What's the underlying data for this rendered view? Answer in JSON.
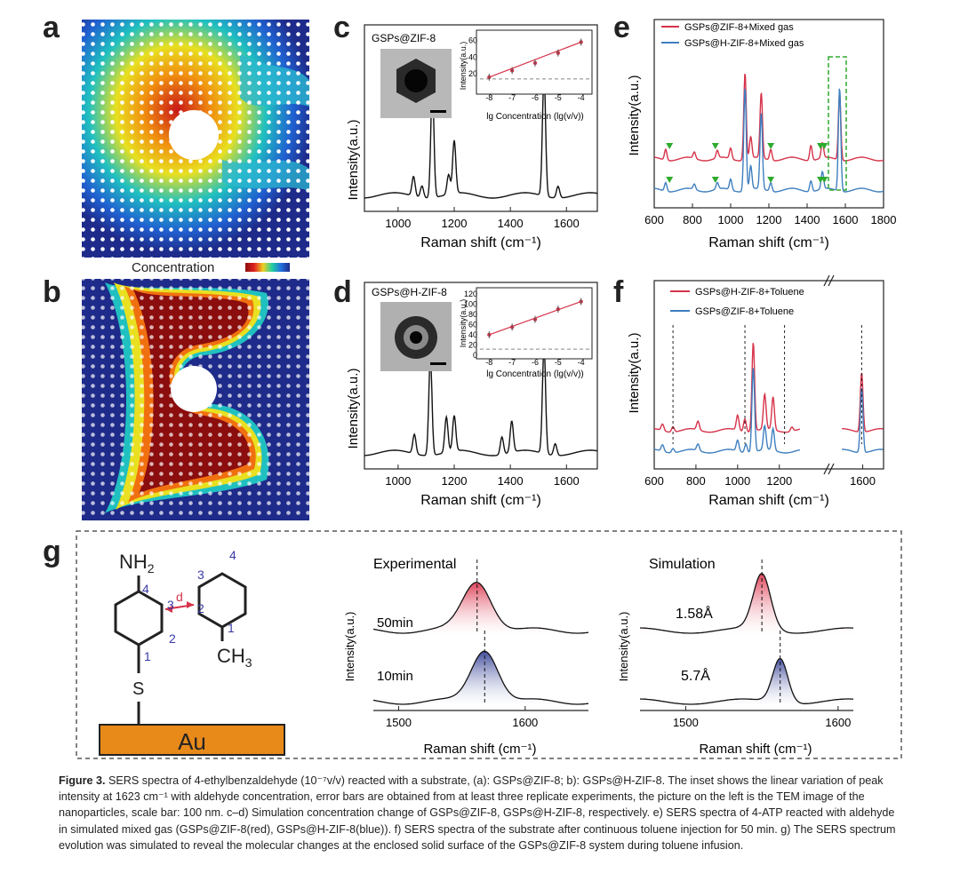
{
  "panels": {
    "a": {
      "label": "a"
    },
    "b": {
      "label": "b",
      "colorbar_label": "Concentration"
    },
    "c": {
      "label": "c",
      "sample": "GSPs@ZIF-8"
    },
    "d": {
      "label": "d",
      "sample": "GSPs@H-ZIF-8"
    },
    "e": {
      "label": "e"
    },
    "f": {
      "label": "f"
    },
    "g": {
      "label": "g",
      "experimental_title": "Experimental",
      "simulation_title": "Simulation",
      "time_50": "50min",
      "time_10": "10min",
      "dist_158": "1.58Å",
      "dist_57": "5.7Å",
      "substrate": "Au",
      "nh2": "NH",
      "nh2_sub": "2",
      "ch3": "CH",
      "ch3_sub": "3",
      "s": "S",
      "d": "d",
      "ring_a": [
        "4",
        "3",
        "2",
        "1"
      ],
      "ring_b": [
        "3",
        "4",
        "2",
        "1"
      ]
    }
  },
  "chart_data": [
    {
      "id": "c",
      "type": "line",
      "xlabel": "Raman shift (cm⁻¹)",
      "ylabel": "Intensity(a.u.)",
      "xlim": [
        880,
        1710
      ],
      "xticks": [
        1000,
        1200,
        1400,
        1600
      ],
      "peaks": [
        {
          "x": 1055,
          "h": 0.1
        },
        {
          "x": 1085,
          "h": 0.06
        },
        {
          "x": 1122,
          "h": 0.56
        },
        {
          "x": 1180,
          "h": 0.1
        },
        {
          "x": 1200,
          "h": 0.27
        },
        {
          "x": 1520,
          "h": 0.62
        },
        {
          "x": 1570,
          "h": 0.06
        }
      ],
      "inset": {
        "type": "scatter",
        "xlabel": "lg Concentration (lg(v/v))",
        "ylabel": "Intensity(a.u.)",
        "xlim": [
          -8.4,
          -3.6
        ],
        "ylim": [
          0,
          68
        ],
        "xticks": [
          -8,
          -7,
          -6,
          -5,
          -4
        ],
        "yticks": [
          20,
          40,
          60
        ],
        "x": [
          -8,
          -7,
          -6,
          -5,
          -4
        ],
        "y": [
          16,
          24,
          33,
          45,
          58
        ],
        "dashed_baseline": 14
      }
    },
    {
      "id": "d",
      "type": "line",
      "xlabel": "Raman shift (cm⁻¹)",
      "ylabel": "Intensity(a.u.)",
      "xlim": [
        880,
        1710
      ],
      "xticks": [
        1000,
        1200,
        1400,
        1600
      ],
      "peaks": [
        {
          "x": 1058,
          "h": 0.1
        },
        {
          "x": 1115,
          "h": 0.5
        },
        {
          "x": 1172,
          "h": 0.18
        },
        {
          "x": 1200,
          "h": 0.18
        },
        {
          "x": 1370,
          "h": 0.09
        },
        {
          "x": 1405,
          "h": 0.16
        },
        {
          "x": 1520,
          "h": 0.55
        },
        {
          "x": 1560,
          "h": 0.06
        }
      ],
      "inset": {
        "type": "scatter",
        "xlabel": "lg Concentration (lg(v/v))",
        "ylabel": "Intensity(a.u.)",
        "xlim": [
          -8.4,
          -3.6
        ],
        "ylim": [
          0,
          125
        ],
        "xticks": [
          -8,
          -7,
          -6,
          -5,
          -4
        ],
        "yticks": [
          0,
          20,
          40,
          60,
          80,
          100,
          120
        ],
        "x": [
          -8,
          -7,
          -6,
          -5,
          -4
        ],
        "y": [
          40,
          55,
          70,
          90,
          105
        ],
        "dashed_baseline": 12
      }
    },
    {
      "id": "e",
      "type": "line",
      "xlabel": "Raman shift (cm⁻¹)",
      "ylabel": "Intensity(a.u.)",
      "xlim": [
        600,
        1800
      ],
      "xticks": [
        600,
        800,
        1000,
        1200,
        1400,
        1600,
        1800
      ],
      "legend": "top-left",
      "series": [
        {
          "name": "GSPs@ZIF-8+Mixed gas",
          "color": "#d6334a",
          "offset": 0.3,
          "peaks": [
            {
              "x": 660,
              "h": 0.1
            },
            {
              "x": 810,
              "h": 0.06
            },
            {
              "x": 930,
              "h": 0.07
            },
            {
              "x": 1000,
              "h": 0.1
            },
            {
              "x": 1075,
              "h": 0.8
            },
            {
              "x": 1105,
              "h": 0.2
            },
            {
              "x": 1160,
              "h": 0.6
            },
            {
              "x": 1210,
              "h": 0.1
            },
            {
              "x": 1420,
              "h": 0.14
            },
            {
              "x": 1480,
              "h": 0.14
            },
            {
              "x": 1570,
              "h": 0.62
            }
          ]
        },
        {
          "name": "GSPs@H-ZIF-8+Mixed gas",
          "color": "#3f7fbf",
          "offset": 0.0,
          "peaks": [
            {
              "x": 660,
              "h": 0.08
            },
            {
              "x": 810,
              "h": 0.05
            },
            {
              "x": 930,
              "h": 0.06
            },
            {
              "x": 1000,
              "h": 0.1
            },
            {
              "x": 1075,
              "h": 0.95
            },
            {
              "x": 1105,
              "h": 0.22
            },
            {
              "x": 1160,
              "h": 0.7
            },
            {
              "x": 1210,
              "h": 0.08
            },
            {
              "x": 1420,
              "h": 0.1
            },
            {
              "x": 1480,
              "h": 0.16
            },
            {
              "x": 1570,
              "h": 0.95
            }
          ]
        }
      ],
      "markers_x": [
        680,
        920,
        1210,
        1470,
        1490
      ]
    },
    {
      "id": "f",
      "type": "line",
      "xlabel": "Raman shift (cm⁻¹)",
      "ylabel": "Intensity(a.u.)",
      "xlim": [
        600,
        1700
      ],
      "xticks": [
        600,
        800,
        1000,
        1200,
        1600
      ],
      "axis_break": [
        1300,
        1500
      ],
      "legend": "top-left",
      "series": [
        {
          "name": "GSPs@H-ZIF-8+Toluene",
          "color": "#d6334a",
          "offset": 0.2,
          "peaks": [
            {
              "x": 640,
              "h": 0.06
            },
            {
              "x": 690,
              "h": 0.05
            },
            {
              "x": 810,
              "h": 0.08
            },
            {
              "x": 1000,
              "h": 0.14
            },
            {
              "x": 1035,
              "h": 0.12
            },
            {
              "x": 1075,
              "h": 0.82
            },
            {
              "x": 1130,
              "h": 0.32
            },
            {
              "x": 1170,
              "h": 0.3
            },
            {
              "x": 1260,
              "h": 0.04
            },
            {
              "x": 1595,
              "h": 0.55
            }
          ]
        },
        {
          "name": "GSPs@ZIF-8+Toluene",
          "color": "#3f7fbf",
          "offset": 0.0,
          "peaks": [
            {
              "x": 640,
              "h": 0.06
            },
            {
              "x": 690,
              "h": 0.04
            },
            {
              "x": 810,
              "h": 0.06
            },
            {
              "x": 1000,
              "h": 0.1
            },
            {
              "x": 1040,
              "h": 0.08
            },
            {
              "x": 1075,
              "h": 0.78
            },
            {
              "x": 1130,
              "h": 0.22
            },
            {
              "x": 1170,
              "h": 0.2
            },
            {
              "x": 1595,
              "h": 0.6
            }
          ]
        }
      ],
      "dashed_x": [
        690,
        1035,
        1225,
        1595
      ]
    },
    {
      "id": "g-exp",
      "type": "line",
      "xlabel": "Raman shift (cm⁻¹)",
      "ylabel": "Intensity(a.u.)",
      "xlim": [
        1480,
        1650
      ],
      "xticks": [
        1500,
        1600
      ],
      "series": [
        {
          "name": "50min",
          "peak_x": 1562,
          "peak_h": 0.8,
          "width": 16
        },
        {
          "name": "10min",
          "peak_x": 1568,
          "peak_h": 0.85,
          "width": 15
        }
      ],
      "dashed_x": [
        1562,
        1568
      ]
    },
    {
      "id": "g-sim",
      "type": "line",
      "xlabel": "Raman shift (cm⁻¹)",
      "ylabel": "Intensity(a.u.)",
      "xlim": [
        1470,
        1610
      ],
      "xticks": [
        1500,
        1600
      ],
      "series": [
        {
          "name": "1.58Å",
          "peak_x": 1550,
          "peak_h": 0.9,
          "width": 8
        },
        {
          "name": "5.7Å",
          "peak_x": 1562,
          "peak_h": 0.72,
          "width": 7
        }
      ],
      "dashed_x": [
        1550,
        1562
      ]
    }
  ],
  "caption": {
    "label": "Figure 3.",
    "text": "SERS spectra of 4-ethylbenzaldehyde (10⁻⁷v/v) reacted with a substrate, (a): GSPs@ZIF-8; b): GSPs@H-ZIF-8. The inset shows the linear variation of peak intensity at 1623 cm⁻¹ with aldehyde concentration, error bars are obtained from at least three replicate experiments, the picture on the left is the TEM image of the nanoparticles, scale bar: 100 nm. c–d) Simulation concentration change of GSPs@ZIF-8, GSPs@H-ZIF-8, respectively. e) SERS spectra of 4-ATP reacted with aldehyde in simulated mixed gas (GSPs@ZIF-8(red), GSPs@H-ZIF-8(blue)). f) SERS spectra of the substrate after continuous toluene injection for 50 min. g) The SERS spectrum evolution was simulated to reveal the molecular changes at the enclosed solid surface of the GSPs@ZIF-8 system during toluene infusion."
  },
  "colors": {
    "red": "#d6334a",
    "blue": "#3f7fbf",
    "dark_red": "#8b0d0d",
    "navy": "#1e2b8a",
    "gold": "#e88a1a",
    "green": "#2eaa2e"
  }
}
